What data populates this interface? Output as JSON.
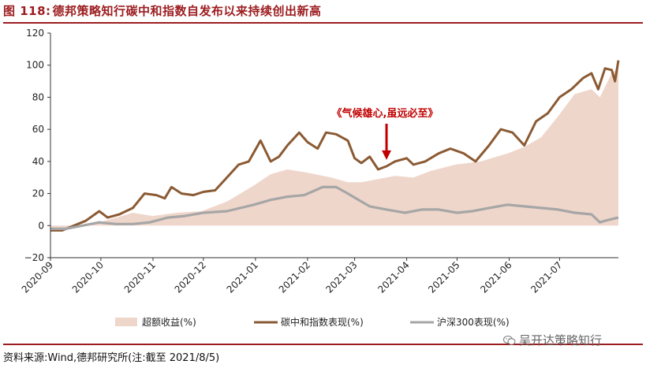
{
  "figure": {
    "number": "图 118:",
    "title": "德邦策略知行碳中和指数自发布以来持续创出新高"
  },
  "source": "资料来源:Wind,德邦研究所(注:截至 2021/8/5)",
  "watermark": {
    "text": "吴开达策略知行",
    "icon": "wechat-icon"
  },
  "chart_data": {
    "type": "line",
    "title": "",
    "xlabel": "",
    "ylabel": "",
    "ylim": [
      -20,
      120
    ],
    "yticks": [
      "−20",
      "0",
      "20",
      "40",
      "60",
      "80",
      "100",
      "120"
    ],
    "ytick_values": [
      -20,
      0,
      20,
      40,
      60,
      80,
      100,
      120
    ],
    "xticks": [
      "2020-09",
      "2020-10",
      "2020-11",
      "2020-12",
      "2021-01",
      "2021-02",
      "2021-03",
      "2021-04",
      "2021-05",
      "2021-06",
      "2021-07"
    ],
    "x_range": [
      "2020-09-01",
      "2021-08-05"
    ],
    "grid": false,
    "legend_position": "bottom",
    "annotation": {
      "text": "《气候雄心,虽远必至》",
      "date": "2021-03-20",
      "arrow_to_value": 40,
      "color": "#c00000"
    },
    "series": [
      {
        "name": "超额收益(%)",
        "style": "area",
        "color": "#efd6cb",
        "points": [
          [
            "2020-09-01",
            -2
          ],
          [
            "2020-09-10",
            -2
          ],
          [
            "2020-09-20",
            0
          ],
          [
            "2020-09-30",
            2
          ],
          [
            "2020-10-10",
            5
          ],
          [
            "2020-10-20",
            8
          ],
          [
            "2020-11-01",
            6
          ],
          [
            "2020-11-15",
            8
          ],
          [
            "2020-11-30",
            9
          ],
          [
            "2020-12-15",
            15
          ],
          [
            "2020-12-31",
            25
          ],
          [
            "2021-01-10",
            32
          ],
          [
            "2021-01-20",
            35
          ],
          [
            "2021-02-01",
            33
          ],
          [
            "2021-02-15",
            30
          ],
          [
            "2021-02-25",
            27
          ],
          [
            "2021-03-05",
            27
          ],
          [
            "2021-03-15",
            29
          ],
          [
            "2021-03-25",
            31
          ],
          [
            "2021-04-05",
            30
          ],
          [
            "2021-04-15",
            34
          ],
          [
            "2021-04-30",
            38
          ],
          [
            "2021-05-15",
            40
          ],
          [
            "2021-05-31",
            45
          ],
          [
            "2021-06-10",
            49
          ],
          [
            "2021-06-20",
            55
          ],
          [
            "2021-06-30",
            68
          ],
          [
            "2021-07-10",
            82
          ],
          [
            "2021-07-20",
            85
          ],
          [
            "2021-07-25",
            80
          ],
          [
            "2021-08-01",
            95
          ],
          [
            "2021-08-05",
            98
          ]
        ]
      },
      {
        "name": "碳中和指数表现(%)",
        "style": "line",
        "color": "#8b5a33",
        "points": [
          [
            "2020-09-01",
            -3
          ],
          [
            "2020-09-08",
            -3
          ],
          [
            "2020-09-15",
            0
          ],
          [
            "2020-09-22",
            3
          ],
          [
            "2020-09-30",
            9
          ],
          [
            "2020-10-05",
            5
          ],
          [
            "2020-10-12",
            7
          ],
          [
            "2020-10-20",
            11
          ],
          [
            "2020-10-27",
            20
          ],
          [
            "2020-11-03",
            19
          ],
          [
            "2020-11-08",
            17
          ],
          [
            "2020-11-12",
            24
          ],
          [
            "2020-11-18",
            20
          ],
          [
            "2020-11-25",
            19
          ],
          [
            "2020-12-01",
            21
          ],
          [
            "2020-12-08",
            22
          ],
          [
            "2020-12-15",
            30
          ],
          [
            "2020-12-22",
            38
          ],
          [
            "2020-12-28",
            40
          ],
          [
            "2021-01-04",
            53
          ],
          [
            "2021-01-10",
            40
          ],
          [
            "2021-01-15",
            43
          ],
          [
            "2021-01-20",
            50
          ],
          [
            "2021-01-27",
            58
          ],
          [
            "2021-02-01",
            52
          ],
          [
            "2021-02-07",
            48
          ],
          [
            "2021-02-12",
            58
          ],
          [
            "2021-02-18",
            57
          ],
          [
            "2021-02-25",
            53
          ],
          [
            "2021-03-01",
            42
          ],
          [
            "2021-03-05",
            39
          ],
          [
            "2021-03-10",
            43
          ],
          [
            "2021-03-15",
            35
          ],
          [
            "2021-03-20",
            37
          ],
          [
            "2021-03-25",
            40
          ],
          [
            "2021-04-01",
            42
          ],
          [
            "2021-04-05",
            38
          ],
          [
            "2021-04-12",
            40
          ],
          [
            "2021-04-20",
            45
          ],
          [
            "2021-04-27",
            48
          ],
          [
            "2021-05-05",
            45
          ],
          [
            "2021-05-12",
            40
          ],
          [
            "2021-05-20",
            50
          ],
          [
            "2021-05-27",
            60
          ],
          [
            "2021-06-03",
            58
          ],
          [
            "2021-06-10",
            50
          ],
          [
            "2021-06-17",
            65
          ],
          [
            "2021-06-24",
            70
          ],
          [
            "2021-07-01",
            80
          ],
          [
            "2021-07-08",
            85
          ],
          [
            "2021-07-15",
            92
          ],
          [
            "2021-07-20",
            95
          ],
          [
            "2021-07-24",
            85
          ],
          [
            "2021-07-28",
            98
          ],
          [
            "2021-08-01",
            97
          ],
          [
            "2021-08-03",
            90
          ],
          [
            "2021-08-05",
            103
          ]
        ]
      },
      {
        "name": "沪深300表现(%)",
        "style": "line",
        "color": "#a6a6a6",
        "points": [
          [
            "2020-09-01",
            -2
          ],
          [
            "2020-09-10",
            -2
          ],
          [
            "2020-09-20",
            0
          ],
          [
            "2020-09-30",
            2
          ],
          [
            "2020-10-10",
            1
          ],
          [
            "2020-10-20",
            1
          ],
          [
            "2020-10-30",
            2
          ],
          [
            "2020-11-10",
            5
          ],
          [
            "2020-11-20",
            6
          ],
          [
            "2020-12-01",
            8
          ],
          [
            "2020-12-15",
            9
          ],
          [
            "2020-12-31",
            13
          ],
          [
            "2021-01-10",
            16
          ],
          [
            "2021-01-20",
            18
          ],
          [
            "2021-01-30",
            19
          ],
          [
            "2021-02-10",
            24
          ],
          [
            "2021-02-18",
            24
          ],
          [
            "2021-02-25",
            20
          ],
          [
            "2021-03-05",
            15
          ],
          [
            "2021-03-10",
            12
          ],
          [
            "2021-03-20",
            10
          ],
          [
            "2021-03-31",
            8
          ],
          [
            "2021-04-10",
            10
          ],
          [
            "2021-04-20",
            10
          ],
          [
            "2021-05-01",
            8
          ],
          [
            "2021-05-10",
            9
          ],
          [
            "2021-05-20",
            11
          ],
          [
            "2021-05-31",
            13
          ],
          [
            "2021-06-10",
            12
          ],
          [
            "2021-06-20",
            11
          ],
          [
            "2021-06-30",
            10
          ],
          [
            "2021-07-10",
            8
          ],
          [
            "2021-07-20",
            7
          ],
          [
            "2021-07-25",
            2
          ],
          [
            "2021-07-28",
            3
          ],
          [
            "2021-08-01",
            4
          ],
          [
            "2021-08-05",
            5
          ]
        ]
      }
    ]
  }
}
